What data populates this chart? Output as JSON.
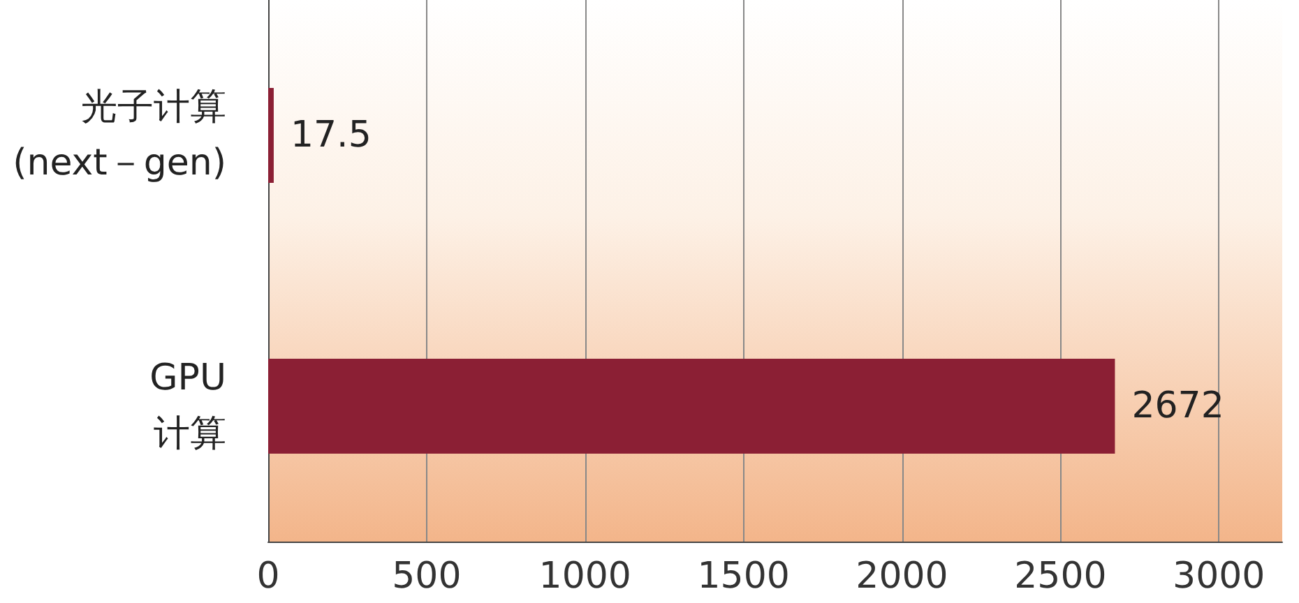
{
  "chart_data": {
    "type": "bar",
    "orientation": "horizontal",
    "categories": [
      "光子计算\n(next－gen)",
      "GPU\n计算"
    ],
    "values": [
      17.5,
      2672
    ],
    "color": "#8b1f34",
    "xlim": [
      0,
      3200
    ],
    "xticks": [
      0,
      500,
      1000,
      1500,
      2000,
      2500,
      3000
    ],
    "grid": "x",
    "data_labels": true
  }
}
